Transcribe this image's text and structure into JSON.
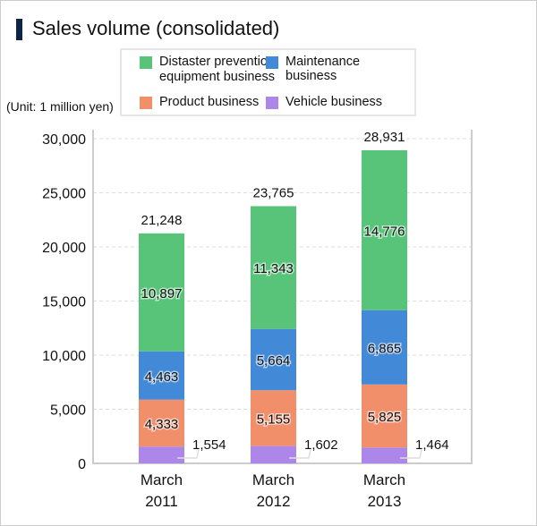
{
  "title": "Sales volume (consolidated)",
  "unit_label": "(Unit: 1 million yen)",
  "chart_data": {
    "type": "bar",
    "stacked": true,
    "title": "Sales volume (consolidated)",
    "ylabel": "(Unit: 1 million yen)",
    "xlabel": "",
    "categories": [
      [
        "March",
        "2011"
      ],
      [
        "March",
        "2012"
      ],
      [
        "March",
        "2013"
      ]
    ],
    "ylim": [
      0,
      30000
    ],
    "yticks": [
      0,
      5000,
      10000,
      15000,
      20000,
      25000,
      30000
    ],
    "ytick_labels": [
      "0",
      "5,000",
      "10,000",
      "15,000",
      "20,000",
      "25,000",
      "30,000"
    ],
    "grid": true,
    "legend_position": "top",
    "series": [
      {
        "name": "Vehicle business",
        "color": "#ad86ea",
        "values": [
          1554,
          1602,
          1464
        ],
        "labels": [
          "1,554",
          "1,602",
          "1,464"
        ]
      },
      {
        "name": "Product business",
        "color": "#f28f6b",
        "values": [
          4333,
          5155,
          5825
        ],
        "labels": [
          "4,333",
          "5,155",
          "5,825"
        ]
      },
      {
        "name": "Maintenance business",
        "color": "#4289d8",
        "values": [
          4463,
          5664,
          6865
        ],
        "labels": [
          "4,463",
          "5,664",
          "6,865"
        ]
      },
      {
        "name": "Distaster prevention equipment business",
        "color": "#58c47a",
        "values": [
          10897,
          11343,
          14776
        ],
        "labels": [
          "10,897",
          "11,343",
          "14,776"
        ]
      }
    ],
    "totals": [
      21248,
      23765,
      28931
    ],
    "total_labels": [
      "21,248",
      "23,765",
      "28,931"
    ]
  },
  "legend": [
    {
      "label1": "Distaster prevention",
      "label2": "equipment business",
      "color": "#58c47a"
    },
    {
      "label1": "Maintenance business",
      "color": "#4289d8"
    },
    {
      "label1": "Product business",
      "color": "#f28f6b"
    },
    {
      "label1": "Vehicle business",
      "color": "#ad86ea"
    }
  ]
}
